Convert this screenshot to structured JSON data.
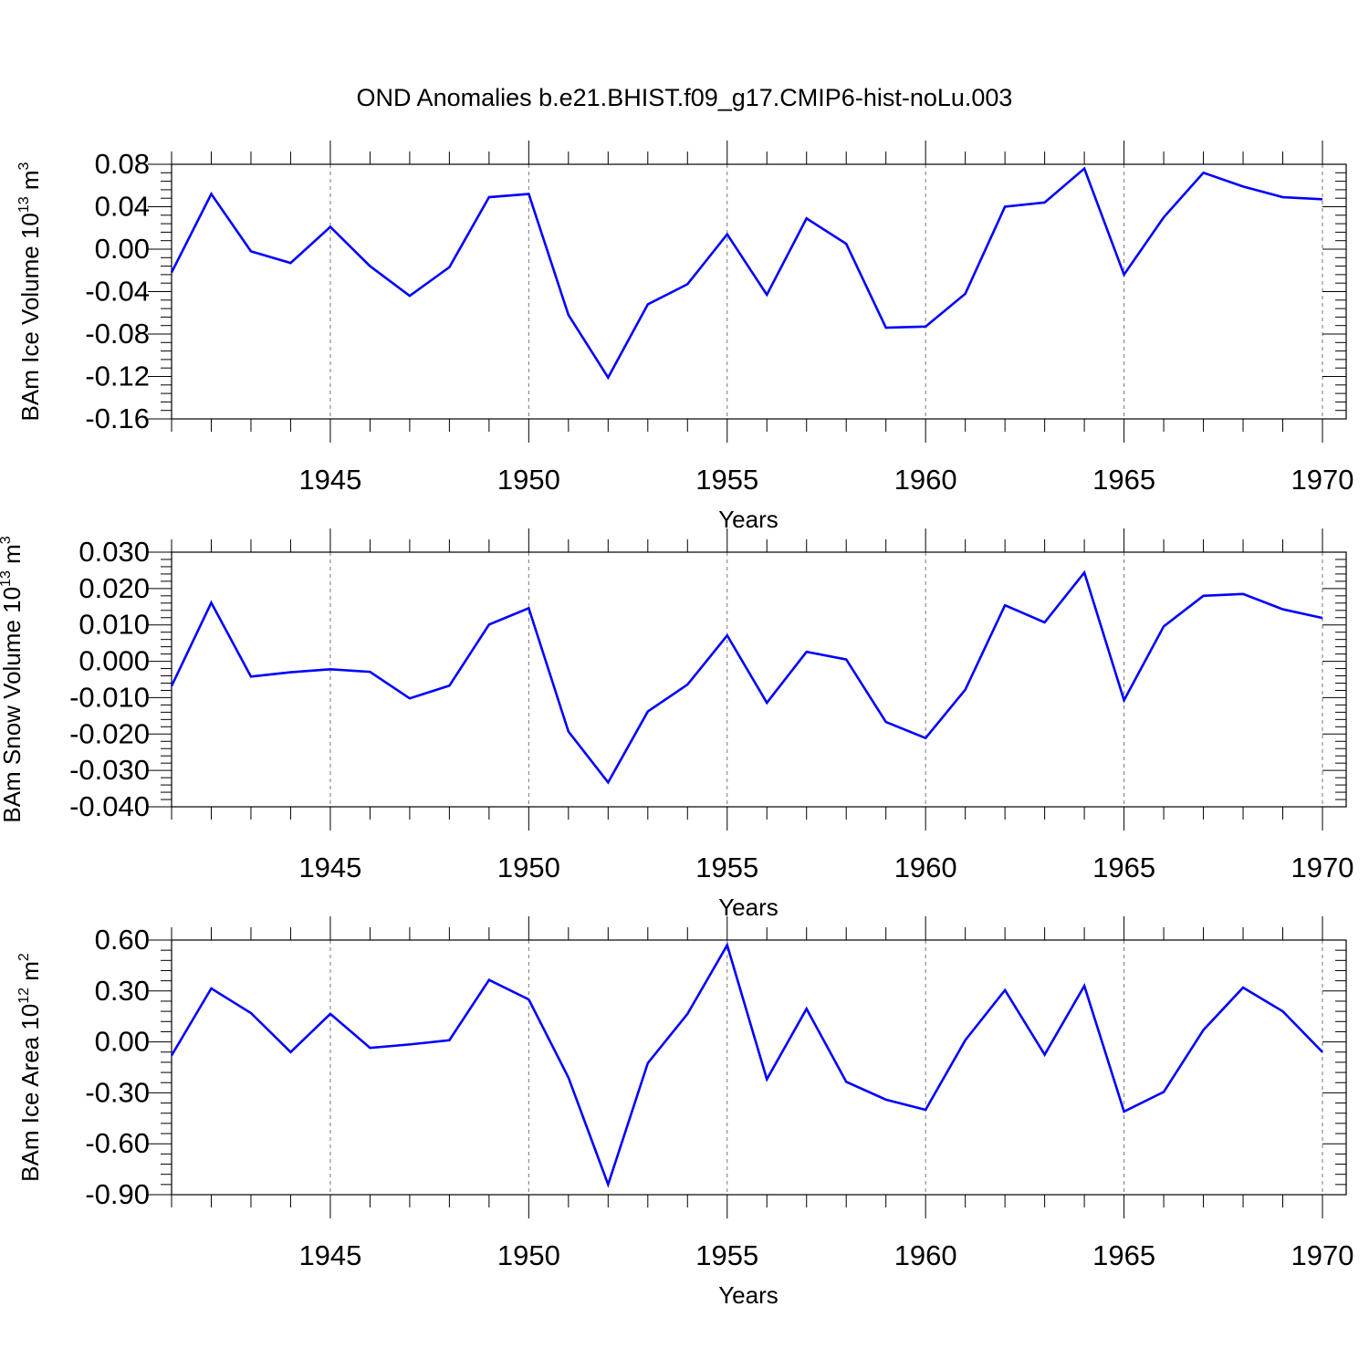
{
  "title": "OND Anomalies b.e21.BHIST.f09_g17.CMIP6-hist-noLu.003",
  "colors": {
    "line": "#0000ff",
    "axis": "#000000",
    "grid": "#777777",
    "background": "#ffffff"
  },
  "chart_data": [
    {
      "type": "line",
      "ylabel": {
        "base": "BAm Ice Volume 10",
        "exp": "13",
        "unit": " m",
        "unit_exp": "3"
      },
      "xlabel": "Years",
      "xlim": [
        1941,
        1970
      ],
      "ylim": [
        -0.16,
        0.08
      ],
      "yticks": [
        -0.16,
        -0.12,
        -0.08,
        -0.04,
        0.0,
        0.04,
        0.08
      ],
      "ytick_labels": [
        "-0.16",
        "-0.12",
        "-0.08",
        "-0.04",
        "0.00",
        "0.04",
        "0.08"
      ],
      "xticks": [
        1945,
        1950,
        1955,
        1960,
        1965,
        1970
      ],
      "xtick_labels": [
        "1945",
        "1950",
        "1955",
        "1960",
        "1965",
        "1970"
      ],
      "grid": "vertical dashed at major x ticks",
      "series": [
        {
          "name": "BAm Ice Volume",
          "x": [
            1941,
            1942,
            1943,
            1944,
            1945,
            1946,
            1947,
            1948,
            1949,
            1950,
            1951,
            1952,
            1953,
            1954,
            1955,
            1956,
            1957,
            1958,
            1959,
            1960,
            1961,
            1962,
            1963,
            1964,
            1965,
            1966,
            1967,
            1968,
            1969,
            1970
          ],
          "values": [
            -0.022,
            0.052,
            -0.002,
            -0.013,
            0.021,
            -0.016,
            -0.044,
            -0.017,
            0.049,
            0.052,
            -0.062,
            -0.121,
            -0.052,
            -0.033,
            0.014,
            -0.043,
            0.029,
            0.005,
            -0.074,
            -0.073,
            -0.042,
            0.04,
            0.044,
            0.076,
            -0.024,
            0.03,
            0.072,
            0.059,
            0.049,
            0.047
          ]
        }
      ]
    },
    {
      "type": "line",
      "ylabel": {
        "base": "BAm Snow Volume 10",
        "exp": "13",
        "unit": " m",
        "unit_exp": "3"
      },
      "xlabel": "Years",
      "xlim": [
        1941,
        1970
      ],
      "ylim": [
        -0.04,
        0.03
      ],
      "yticks": [
        -0.04,
        -0.03,
        -0.02,
        -0.01,
        0.0,
        0.01,
        0.02,
        0.03
      ],
      "ytick_labels": [
        "-0.040",
        "-0.030",
        "-0.020",
        "-0.010",
        "0.000",
        "0.010",
        "0.020",
        "0.030"
      ],
      "xticks": [
        1945,
        1950,
        1955,
        1960,
        1965,
        1970
      ],
      "xtick_labels": [
        "1945",
        "1950",
        "1955",
        "1960",
        "1965",
        "1970"
      ],
      "grid": "vertical dashed at major x ticks",
      "series": [
        {
          "name": "BAm Snow Volume",
          "x": [
            1941,
            1942,
            1943,
            1944,
            1945,
            1946,
            1947,
            1948,
            1949,
            1950,
            1951,
            1952,
            1953,
            1954,
            1955,
            1956,
            1957,
            1958,
            1959,
            1960,
            1961,
            1962,
            1963,
            1964,
            1965,
            1966,
            1967,
            1968,
            1969,
            1970
          ],
          "values": [
            -0.0068,
            0.0161,
            -0.0042,
            -0.003,
            -0.0022,
            -0.0029,
            -0.0102,
            -0.0067,
            0.0101,
            0.0146,
            -0.0193,
            -0.0333,
            -0.0138,
            -0.0064,
            0.0071,
            -0.0114,
            0.0026,
            0.0005,
            -0.0167,
            -0.0211,
            -0.0078,
            0.0154,
            0.0107,
            0.0244,
            -0.0107,
            0.0096,
            0.018,
            0.0185,
            0.0143,
            0.0119
          ]
        }
      ]
    },
    {
      "type": "line",
      "ylabel": {
        "base": "BAm Ice Area 10",
        "exp": "12",
        "unit": " m",
        "unit_exp": "2"
      },
      "xlabel": "Years",
      "xlim": [
        1941,
        1970
      ],
      "ylim": [
        -0.9,
        0.6
      ],
      "yticks": [
        -0.9,
        -0.6,
        -0.3,
        0.0,
        0.3,
        0.6
      ],
      "ytick_labels": [
        "-0.90",
        "-0.60",
        "-0.30",
        "0.00",
        "0.30",
        "0.60"
      ],
      "xticks": [
        1945,
        1950,
        1955,
        1960,
        1965,
        1970
      ],
      "xtick_labels": [
        "1945",
        "1950",
        "1955",
        "1960",
        "1965",
        "1970"
      ],
      "grid": "vertical dashed at major x ticks",
      "series": [
        {
          "name": "BAm Ice Area",
          "x": [
            1941,
            1942,
            1943,
            1944,
            1945,
            1946,
            1947,
            1948,
            1949,
            1950,
            1951,
            1952,
            1953,
            1954,
            1955,
            1956,
            1957,
            1958,
            1959,
            1960,
            1961,
            1962,
            1963,
            1964,
            1965,
            1966,
            1967,
            1968,
            1969,
            1970
          ],
          "values": [
            -0.08,
            0.315,
            0.17,
            -0.06,
            0.165,
            -0.035,
            -0.015,
            0.01,
            0.365,
            0.25,
            -0.21,
            -0.84,
            -0.125,
            0.165,
            0.57,
            -0.22,
            0.195,
            -0.235,
            -0.34,
            -0.4,
            0.01,
            0.305,
            -0.075,
            0.33,
            -0.41,
            -0.295,
            0.07,
            0.32,
            0.18,
            -0.06
          ]
        }
      ]
    }
  ]
}
